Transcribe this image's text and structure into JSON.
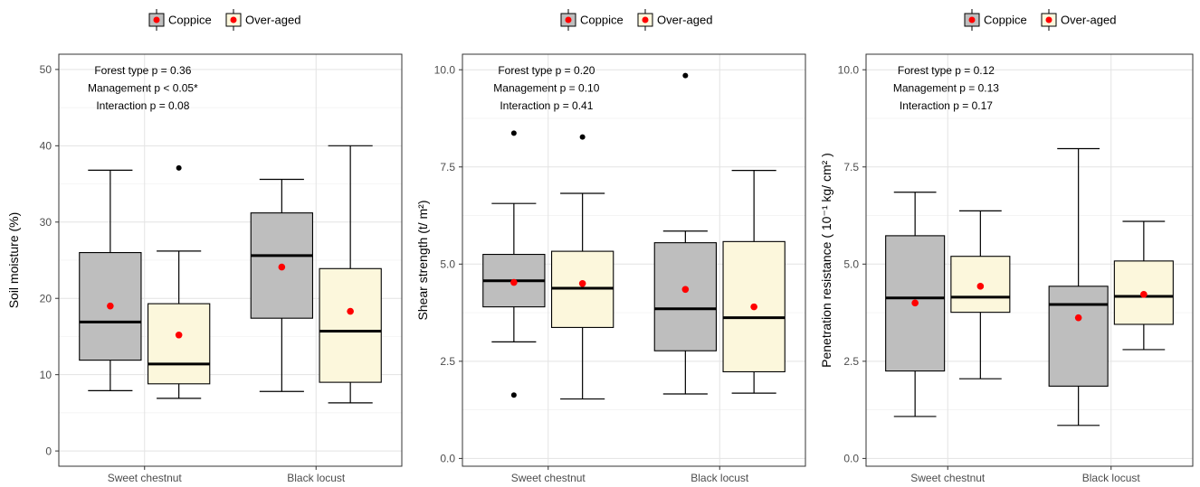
{
  "legend": {
    "items": [
      {
        "label": "Coppice",
        "fill": "#BEBEBE"
      },
      {
        "label": "Over-aged",
        "fill": "#FCF7DC"
      }
    ],
    "mean_color": "#FF0000",
    "placement": "top"
  },
  "categories": [
    "Sweet chestnut",
    "Black locust"
  ],
  "chart_data": [
    {
      "type": "box",
      "ylabel": "Soil moisture (%)",
      "ylim": [
        -2,
        52
      ],
      "yticks": [
        0,
        10,
        20,
        30,
        40,
        50
      ],
      "tick_labels": [
        "0",
        "10",
        "20",
        "30",
        "40",
        "50"
      ],
      "annotations": [
        "Forest type p = 0.36",
        "Management p < 0.05*",
        "Interaction p = 0.08"
      ],
      "grid": true,
      "boxes": [
        {
          "category": "Sweet chestnut",
          "group": "Coppice",
          "min": 7.9,
          "q1": 11.9,
          "median": 16.9,
          "q3": 26.0,
          "max": 36.8,
          "mean": 19.0,
          "outliers": []
        },
        {
          "category": "Sweet chestnut",
          "group": "Over-aged",
          "min": 6.9,
          "q1": 8.8,
          "median": 11.4,
          "q3": 19.3,
          "max": 26.2,
          "mean": 15.2,
          "outliers": [
            37.1
          ]
        },
        {
          "category": "Black locust",
          "group": "Coppice",
          "min": 7.8,
          "q1": 17.4,
          "median": 25.6,
          "q3": 31.2,
          "max": 35.6,
          "mean": 24.1,
          "outliers": []
        },
        {
          "category": "Black locust",
          "group": "Over-aged",
          "min": 6.3,
          "q1": 9.0,
          "median": 15.7,
          "q3": 23.9,
          "max": 40.0,
          "mean": 18.3,
          "outliers": []
        }
      ]
    },
    {
      "type": "box",
      "ylabel": "Shear strength (t/ m²)",
      "ylim": [
        -0.2,
        10.4
      ],
      "yticks": [
        0,
        2.5,
        5,
        7.5,
        10
      ],
      "tick_labels": [
        "0.0",
        "2.5",
        "5.0",
        "7.5",
        "10.0"
      ],
      "annotations": [
        "Forest type p = 0.20",
        "Management p = 0.10",
        "Interaction p = 0.41"
      ],
      "grid": true,
      "boxes": [
        {
          "category": "Sweet chestnut",
          "group": "Coppice",
          "min": 3.0,
          "q1": 3.9,
          "median": 4.57,
          "q3": 5.25,
          "max": 6.56,
          "mean": 4.53,
          "outliers": [
            8.37,
            1.63
          ]
        },
        {
          "category": "Sweet chestnut",
          "group": "Over-aged",
          "min": 1.53,
          "q1": 3.37,
          "median": 4.38,
          "q3": 5.33,
          "max": 6.82,
          "mean": 4.5,
          "outliers": [
            8.27
          ]
        },
        {
          "category": "Black locust",
          "group": "Coppice",
          "min": 1.66,
          "q1": 2.77,
          "median": 3.85,
          "q3": 5.55,
          "max": 5.85,
          "mean": 4.35,
          "outliers": [
            9.85
          ]
        },
        {
          "category": "Black locust",
          "group": "Over-aged",
          "min": 1.68,
          "q1": 2.23,
          "median": 3.62,
          "q3": 5.58,
          "max": 7.41,
          "mean": 3.9,
          "outliers": []
        }
      ]
    },
    {
      "type": "box",
      "ylabel": "Penetration resistance ( 10⁻¹ kg/ cm² )",
      "ylim": [
        -0.2,
        10.4
      ],
      "yticks": [
        0,
        2.5,
        5,
        7.5,
        10
      ],
      "tick_labels": [
        "0.0",
        "2.5",
        "5.0",
        "7.5",
        "10.0"
      ],
      "annotations": [
        "Forest type p = 0.12",
        "Management p = 0.13",
        "Interaction p = 0.17"
      ],
      "grid": true,
      "boxes": [
        {
          "category": "Sweet chestnut",
          "group": "Coppice",
          "min": 1.08,
          "q1": 2.25,
          "median": 4.13,
          "q3": 5.73,
          "max": 6.85,
          "mean": 4.0,
          "outliers": []
        },
        {
          "category": "Sweet chestnut",
          "group": "Over-aged",
          "min": 2.05,
          "q1": 3.76,
          "median": 4.15,
          "q3": 5.2,
          "max": 6.37,
          "mean": 4.43,
          "outliers": []
        },
        {
          "category": "Black locust",
          "group": "Coppice",
          "min": 0.85,
          "q1": 1.86,
          "median": 3.96,
          "q3": 4.43,
          "max": 7.97,
          "mean": 3.62,
          "outliers": []
        },
        {
          "category": "Black locust",
          "group": "Over-aged",
          "min": 2.8,
          "q1": 3.45,
          "median": 4.17,
          "q3": 5.08,
          "max": 6.1,
          "mean": 4.22,
          "outliers": []
        }
      ]
    }
  ]
}
